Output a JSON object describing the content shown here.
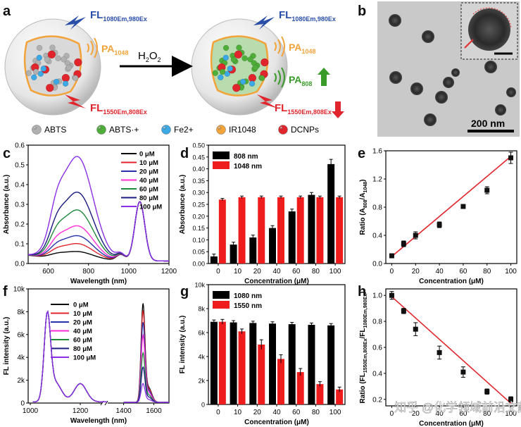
{
  "panel_letters": [
    "a",
    "b",
    "c",
    "d",
    "e",
    "f",
    "g",
    "h"
  ],
  "panel_a": {
    "fl_top_left": {
      "main": "FL",
      "sub": "1080Em,980Ex"
    },
    "fl_top_right": {
      "main": "FL",
      "sub": "1080Em,980Ex"
    },
    "pa_left": {
      "main": "PA",
      "sub": "1048"
    },
    "pa_right": {
      "main": "PA",
      "sub": "1048"
    },
    "pa_808": {
      "main": "PA",
      "sub": "808"
    },
    "fl_bottom_left": {
      "main": "FL",
      "sub": "1550Em,808Ex"
    },
    "fl_bottom_right": {
      "main": "FL",
      "sub": "1550Em,808Ex"
    },
    "reagent": {
      "main": "H",
      "sub": "2",
      "tail": "O",
      "sub2": "2"
    },
    "legend": [
      {
        "label": "ABTS",
        "color": "#b0b0b0"
      },
      {
        "label": "ABTS·+",
        "color": "#4fae3a"
      },
      {
        "label": "Fe2+",
        "color": "#3aa9e6"
      },
      {
        "label": "IR1048",
        "color": "#f2a33a"
      },
      {
        "label": "DCNPs",
        "color": "#e0262c"
      }
    ],
    "colors": {
      "blue": "#2a4fa8",
      "red": "#e0262c",
      "orange": "#f2a33a",
      "green": "#3a9b2a"
    }
  },
  "panel_b": {
    "scale_label": "200 nm"
  },
  "chart_data": [
    {
      "id": "c",
      "type": "line",
      "xlabel": "Wavelength (nm)",
      "ylabel": "Absorbance (a.u.)",
      "xlim": [
        500,
        1200
      ],
      "ylim": [
        0,
        0.6
      ],
      "xticks": [
        600,
        800,
        1000,
        1200
      ],
      "yticks": [
        0.0,
        0.1,
        0.2,
        0.3,
        0.4,
        0.5,
        0.6
      ],
      "ytick_labels": [
        "0.0",
        "0.1",
        "0.2",
        "0.3",
        "0.4",
        "0.5",
        "0.6"
      ],
      "series": [
        {
          "name": "0 μM",
          "color": "#000000",
          "peak740": 0.04
        },
        {
          "name": "10 μM",
          "color": "#e0262c",
          "peak740": 0.08
        },
        {
          "name": "20 μM",
          "color": "#2532a8",
          "peak740": 0.12
        },
        {
          "name": "40 μM",
          "color": "#ff2fd6",
          "peak740": 0.17
        },
        {
          "name": "60 μM",
          "color": "#1f8a3a",
          "peak740": 0.25
        },
        {
          "name": "80 μM",
          "color": "#1a1a80",
          "peak740": 0.34
        },
        {
          "name": "100 μM",
          "color": "#8b2fe6",
          "peak740": 0.52
        }
      ],
      "peak1050": 0.3
    },
    {
      "id": "d",
      "type": "bar",
      "xlabel": "Concentration (μM)",
      "ylabel": "Absorbance (a.u.)",
      "categories": [
        "0",
        "10",
        "20",
        "40",
        "60",
        "80",
        "100"
      ],
      "ylim": [
        0,
        0.5
      ],
      "yticks": [
        0.0,
        0.05,
        0.1,
        0.15,
        0.2,
        0.25,
        0.3,
        0.35,
        0.4,
        0.45,
        0.5
      ],
      "ytick_labels": [
        "0.00",
        "0.05",
        "0.10",
        "0.15",
        "0.20",
        "0.25",
        "0.30",
        "0.35",
        "0.40",
        "0.45",
        "0.50"
      ],
      "series": [
        {
          "name": "808 nm",
          "color": "#000000",
          "values": [
            0.03,
            0.08,
            0.11,
            0.15,
            0.22,
            0.29,
            0.42
          ],
          "errors": [
            0.01,
            0.01,
            0.01,
            0.01,
            0.01,
            0.01,
            0.02
          ]
        },
        {
          "name": "1048 nm",
          "color": "#ee1c1c",
          "values": [
            0.27,
            0.28,
            0.28,
            0.28,
            0.28,
            0.28,
            0.28
          ],
          "errors": [
            0.005,
            0.005,
            0.005,
            0.005,
            0.005,
            0.005,
            0.005
          ]
        }
      ]
    },
    {
      "id": "e",
      "type": "scatter",
      "xlabel": "Concentration (μM)",
      "ylabel": {
        "main": "Ratio (A",
        "sub1": "808",
        "mid": "/A",
        "sub2": "1048",
        "tail": ")"
      },
      "x": [
        0,
        10,
        20,
        40,
        60,
        80,
        100
      ],
      "y": [
        0.11,
        0.28,
        0.4,
        0.55,
        0.81,
        1.04,
        1.5
      ],
      "errors": [
        0.03,
        0.04,
        0.05,
        0.04,
        0.02,
        0.05,
        0.08
      ],
      "fit": [
        0.1,
        1.52
      ],
      "xlim": [
        -5,
        105
      ],
      "ylim": [
        0,
        1.6
      ],
      "xticks": [
        0,
        20,
        40,
        60,
        80,
        100
      ],
      "yticks": [
        0.0,
        0.4,
        0.8,
        1.2,
        1.6
      ],
      "ytick_labels": [
        "0.0",
        "0.4",
        "0.8",
        "1.2",
        "1.6"
      ]
    },
    {
      "id": "f",
      "type": "line",
      "xlabel": "Wavelength (nm)",
      "ylabel": "FL intensity (a.u.)",
      "ylim": [
        0,
        10000
      ],
      "yticks": [
        0,
        2000,
        4000,
        6000,
        8000,
        10000
      ],
      "ytick_labels": [
        "0",
        "2k",
        "4k",
        "6k",
        "8k",
        "10k"
      ],
      "xtick_labels": [
        "1000",
        "1200",
        "1400",
        "1600"
      ],
      "series": [
        {
          "name": "0 μM",
          "color": "#000000",
          "peak1530": 8400
        },
        {
          "name": "10 μM",
          "color": "#e0262c",
          "peak1530": 7800
        },
        {
          "name": "20 μM",
          "color": "#2532a8",
          "peak1530": 6800
        },
        {
          "name": "40 μM",
          "color": "#ff2fd6",
          "peak1530": 5700
        },
        {
          "name": "60 μM",
          "color": "#1f8a3a",
          "peak1530": 4200
        },
        {
          "name": "80 μM",
          "color": "#1a1a80",
          "peak1530": 3000
        },
        {
          "name": "100 μM",
          "color": "#8b2fe6",
          "peak1530": 1600
        }
      ],
      "peak1070": 7200
    },
    {
      "id": "g",
      "type": "bar",
      "xlabel": "Concentration (μM)",
      "ylabel": "FL intensity (a.u.)",
      "categories": [
        "0",
        "10",
        "20",
        "40",
        "60",
        "80",
        "100"
      ],
      "ylim": [
        0,
        10000
      ],
      "yticks": [
        0,
        2000,
        4000,
        6000,
        8000,
        10000
      ],
      "ytick_labels": [
        "0",
        "2k",
        "4k",
        "6k",
        "8k",
        "10k"
      ],
      "series": [
        {
          "name": "1080 nm",
          "color": "#000000",
          "values": [
            6900,
            6850,
            6800,
            6750,
            6700,
            6650,
            6600
          ],
          "errors": [
            150,
            150,
            150,
            150,
            150,
            150,
            150
          ]
        },
        {
          "name": "1550 nm",
          "color": "#ee1c1c",
          "values": [
            6900,
            6100,
            5000,
            3800,
            2700,
            1700,
            1250
          ],
          "errors": [
            200,
            200,
            400,
            350,
            300,
            200,
            200
          ]
        }
      ]
    },
    {
      "id": "h",
      "type": "scatter",
      "xlabel": "Concentration (μM)",
      "ylabel": {
        "main": "Ratio (FL",
        "sub1": "1550Em,808Ex",
        "mid": "/FL",
        "sub2": "1080Em,980Ex",
        "tail": ")"
      },
      "x": [
        0,
        10,
        20,
        40,
        60,
        80,
        100
      ],
      "y": [
        1.0,
        0.88,
        0.74,
        0.56,
        0.41,
        0.26,
        0.2
      ],
      "errors": [
        0.03,
        0.02,
        0.05,
        0.05,
        0.04,
        0.02,
        0.02
      ],
      "fit": [
        0.99,
        0.17
      ],
      "xlim": [
        -5,
        105
      ],
      "ylim": [
        0.15,
        1.05
      ],
      "xticks": [
        0,
        20,
        40,
        60,
        80,
        100
      ],
      "yticks": [
        0.2,
        0.4,
        0.6,
        0.8,
        1.0
      ],
      "ytick_labels": [
        "0.2",
        "0.4",
        "0.6",
        "0.8",
        "1.0"
      ]
    }
  ],
  "watermark": "知乎 @化学领域前沿文献"
}
